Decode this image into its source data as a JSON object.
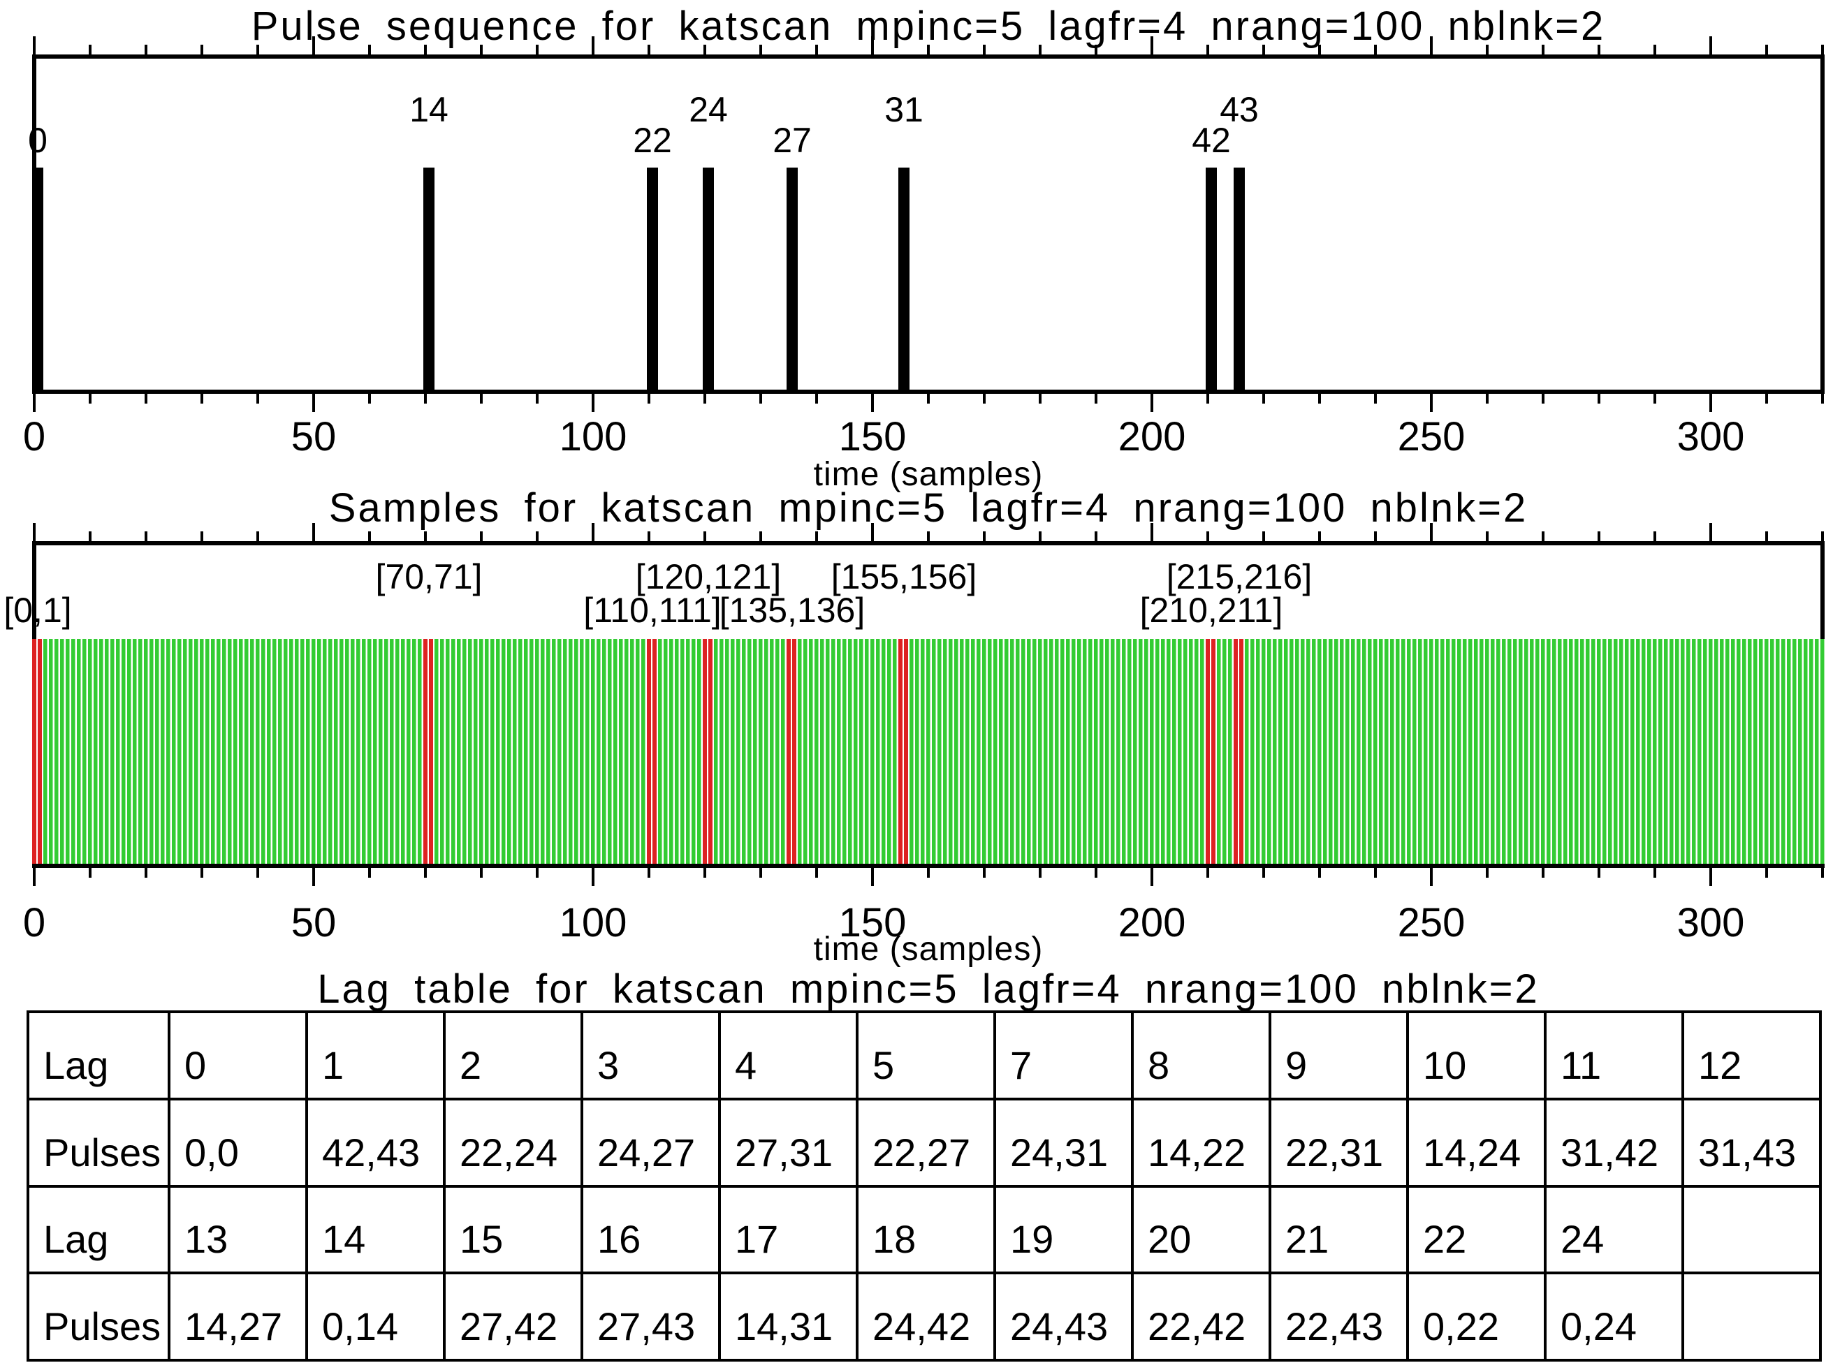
{
  "page": {
    "background": "#ffffff",
    "foreground": "#000000"
  },
  "xticks": {
    "major": [
      0,
      50,
      100,
      150,
      200,
      250,
      300
    ],
    "labels": [
      "0",
      "50",
      "100",
      "150",
      "200",
      "250",
      "300"
    ],
    "minor_step": 10,
    "max": 320
  },
  "plot1": {
    "title": "Pulse sequence for katscan mpinc=5 lagfr=4 nrang=100 nblnk=2",
    "xlabel": "time (samples)",
    "pulses": [
      {
        "label": "0",
        "time": 0,
        "row": "lower"
      },
      {
        "label": "14",
        "time": 70,
        "row": "upper"
      },
      {
        "label": "22",
        "time": 110,
        "row": "lower"
      },
      {
        "label": "24",
        "time": 120,
        "row": "upper"
      },
      {
        "label": "27",
        "time": 135,
        "row": "lower"
      },
      {
        "label": "31",
        "time": 155,
        "row": "upper"
      },
      {
        "label": "42",
        "time": 210,
        "row": "lower"
      },
      {
        "label": "43",
        "time": 215,
        "row": "upper"
      }
    ]
  },
  "plot2": {
    "title": "Samples for katscan mpinc=5 lagfr=4 nrang=100 nblnk=2",
    "xlabel": "time (samples)",
    "sample_color": "#33cc33",
    "blanked_color": "#dd2222",
    "blanked": [
      {
        "label": "[0,1]",
        "samples": [
          0,
          1
        ],
        "row": "lower"
      },
      {
        "label": "[70,71]",
        "samples": [
          70,
          71
        ],
        "row": "upper"
      },
      {
        "label": "[110,111]",
        "samples": [
          110,
          111
        ],
        "row": "lower"
      },
      {
        "label": "[120,121]",
        "samples": [
          120,
          121
        ],
        "row": "upper"
      },
      {
        "label": "[135,136]",
        "samples": [
          135,
          136
        ],
        "row": "lower"
      },
      {
        "label": "[155,156]",
        "samples": [
          155,
          156
        ],
        "row": "upper"
      },
      {
        "label": "[210,211]",
        "samples": [
          210,
          211
        ],
        "row": "lower"
      },
      {
        "label": "[215,216]",
        "samples": [
          215,
          216
        ],
        "row": "upper"
      }
    ]
  },
  "lag_table": {
    "title": "Lag table for katscan mpinc=5 lagfr=4 nrang=100 nblnk=2",
    "rows": [
      [
        "Lag",
        "0",
        "1",
        "2",
        "3",
        "4",
        "5",
        "7",
        "8",
        "9",
        "10",
        "11",
        "12"
      ],
      [
        "Pulses",
        "0,0",
        "42,43",
        "22,24",
        "24,27",
        "27,31",
        "22,27",
        "24,31",
        "14,22",
        "22,31",
        "14,24",
        "31,42",
        "31,43"
      ],
      [
        "Lag",
        "13",
        "14",
        "15",
        "16",
        "17",
        "18",
        "19",
        "20",
        "21",
        "22",
        "24",
        ""
      ],
      [
        "Pulses",
        "14,27",
        "0,14",
        "27,42",
        "27,43",
        "14,31",
        "24,42",
        "24,43",
        "22,42",
        "22,43",
        "0,22",
        "0,24",
        ""
      ]
    ]
  },
  "chart_data": [
    {
      "type": "bar",
      "title": "Pulse sequence for katscan mpinc=5 lagfr=4 nrang=100 nblnk=2",
      "xlabel": "time (samples)",
      "xlim": [
        0,
        321
      ],
      "xticks": [
        0,
        50,
        100,
        150,
        200,
        250,
        300
      ],
      "x": [
        0,
        70,
        110,
        120,
        135,
        155,
        210,
        215
      ],
      "bar_labels": [
        "0",
        "14",
        "22",
        "24",
        "27",
        "31",
        "42",
        "43"
      ],
      "values": [
        1,
        1,
        1,
        1,
        1,
        1,
        1,
        1
      ],
      "bar_width_x": 2,
      "note": "bar label = pulse number; bar position = pulse number * mpinc(5) samples"
    },
    {
      "type": "area",
      "title": "Samples for katscan mpinc=5 lagfr=4 nrang=100 nblnk=2",
      "xlabel": "time (samples)",
      "xlim": [
        0,
        321
      ],
      "xticks": [
        0,
        50,
        100,
        150,
        200,
        250,
        300
      ],
      "sample_range": [
        0,
        320
      ],
      "sample_color": "#33cc33",
      "blanked_color": "#dd2222",
      "blanked_pairs": [
        [
          0,
          1
        ],
        [
          70,
          71
        ],
        [
          110,
          111
        ],
        [
          120,
          121
        ],
        [
          135,
          136
        ],
        [
          155,
          156
        ],
        [
          210,
          211
        ],
        [
          215,
          216
        ]
      ]
    },
    {
      "type": "table",
      "title": "Lag table for katscan mpinc=5 lagfr=4 nrang=100 nblnk=2",
      "rows": [
        [
          "Lag",
          "0",
          "1",
          "2",
          "3",
          "4",
          "5",
          "7",
          "8",
          "9",
          "10",
          "11",
          "12"
        ],
        [
          "Pulses",
          "0,0",
          "42,43",
          "22,24",
          "24,27",
          "27,31",
          "22,27",
          "24,31",
          "14,22",
          "22,31",
          "14,24",
          "31,42",
          "31,43"
        ],
        [
          "Lag",
          "13",
          "14",
          "15",
          "16",
          "17",
          "18",
          "19",
          "20",
          "21",
          "22",
          "24",
          ""
        ],
        [
          "Pulses",
          "14,27",
          "0,14",
          "27,42",
          "27,43",
          "14,31",
          "24,42",
          "24,43",
          "22,42",
          "22,43",
          "0,22",
          "0,24",
          ""
        ]
      ]
    }
  ]
}
